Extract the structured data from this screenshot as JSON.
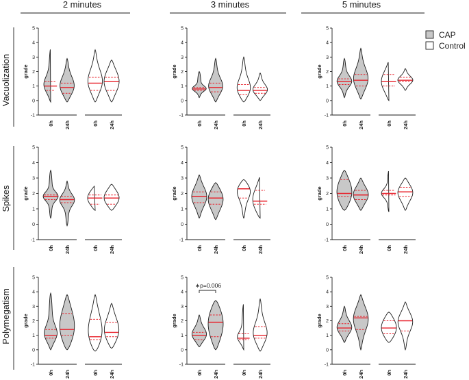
{
  "column_headers": [
    "2 minutes",
    "3 minutes",
    "5 minutes"
  ],
  "row_labels": [
    "Vacuolization",
    "Spikes",
    "Polymegatism"
  ],
  "legend": {
    "position": "top-right",
    "items": [
      {
        "label": "CAP",
        "color": "#c8c8c8"
      },
      {
        "label": "Control",
        "color": "#ffffff"
      }
    ]
  },
  "colors": {
    "median": "#e8202a",
    "quartile": "#e8202a",
    "outline": "#1a1a1a",
    "cap_fill": "#c8c8c8",
    "control_fill": "#ffffff"
  },
  "chart_data": [
    {
      "type": "violin",
      "row": "Vacuolization",
      "col": "2 minutes",
      "ylabel": "grade",
      "ylim": [
        -1,
        5
      ],
      "yticks": [
        -1,
        0,
        1,
        2,
        3,
        4,
        5
      ],
      "groups": [
        {
          "label": "0h",
          "group": "CAP",
          "min": -0.1,
          "max": 3.6,
          "median": 1.0,
          "q1": 0.7,
          "q3": 1.3
        },
        {
          "label": "24h",
          "group": "CAP",
          "min": -0.1,
          "max": 2.9,
          "median": 0.9,
          "q1": 0.5,
          "q3": 1.2
        },
        {
          "label": "0h",
          "group": "Control",
          "min": -0.1,
          "max": 3.5,
          "median": 1.2,
          "q1": 0.7,
          "q3": 1.6
        },
        {
          "label": "24h",
          "group": "Control",
          "min": -0.1,
          "max": 2.8,
          "median": 1.3,
          "q1": 0.7,
          "q3": 1.6
        }
      ]
    },
    {
      "type": "violin",
      "row": "Vacuolization",
      "col": "3 minutes",
      "ylabel": "grade",
      "ylim": [
        -1,
        5
      ],
      "yticks": [
        -1,
        0,
        1,
        2,
        3,
        4,
        5
      ],
      "groups": [
        {
          "label": "0h",
          "group": "CAP",
          "min": 0.2,
          "max": 2.0,
          "median": 0.8,
          "q1": 0.7,
          "q3": 0.9
        },
        {
          "label": "24h",
          "group": "CAP",
          "min": -0.1,
          "max": 2.9,
          "median": 0.9,
          "q1": 0.6,
          "q3": 1.2
        },
        {
          "label": "0h",
          "group": "Control",
          "min": -0.1,
          "max": 3.0,
          "median": 0.7,
          "q1": 0.4,
          "q3": 1.1
        },
        {
          "label": "24h",
          "group": "Control",
          "min": 0.0,
          "max": 1.9,
          "median": 0.7,
          "q1": 0.5,
          "q3": 0.9
        }
      ]
    },
    {
      "type": "violin",
      "row": "Vacuolization",
      "col": "5 minutes",
      "ylabel": "grade",
      "ylim": [
        -1,
        5
      ],
      "yticks": [
        -1,
        0,
        1,
        2,
        3,
        4,
        5
      ],
      "groups": [
        {
          "label": "0h",
          "group": "CAP",
          "min": 0.2,
          "max": 2.9,
          "median": 1.3,
          "q1": 1.1,
          "q3": 1.5
        },
        {
          "label": "24h",
          "group": "CAP",
          "min": 0.1,
          "max": 3.6,
          "median": 1.4,
          "q1": 1.0,
          "q3": 1.8
        },
        {
          "label": "0h",
          "group": "Control",
          "min": 0.0,
          "max": 2.7,
          "median": 1.3,
          "q1": 1.0,
          "q3": 1.8
        },
        {
          "label": "24h",
          "group": "Control",
          "min": 0.7,
          "max": 2.2,
          "median": 1.4,
          "q1": 1.3,
          "q3": 1.6
        }
      ]
    },
    {
      "type": "violin",
      "row": "Spikes",
      "col": "2 minutes",
      "ylabel": "grade",
      "ylim": [
        -1,
        5
      ],
      "yticks": [
        -1,
        0,
        1,
        2,
        3,
        4,
        5
      ],
      "groups": [
        {
          "label": "0h",
          "group": "CAP",
          "min": 0.4,
          "max": 3.5,
          "median": 1.8,
          "q1": 1.6,
          "q3": 1.9
        },
        {
          "label": "24h",
          "group": "CAP",
          "min": -0.1,
          "max": 2.8,
          "median": 1.6,
          "q1": 1.4,
          "q3": 1.8
        },
        {
          "label": "0h",
          "group": "Control",
          "min": 0.9,
          "max": 2.5,
          "median": 1.7,
          "q1": 1.3,
          "q3": 1.9
        },
        {
          "label": "24h",
          "group": "Control",
          "min": 0.9,
          "max": 2.6,
          "median": 1.7,
          "q1": 1.3,
          "q3": 1.9
        }
      ]
    },
    {
      "type": "violin",
      "row": "Spikes",
      "col": "3 minutes",
      "ylabel": "grade",
      "ylim": [
        -1,
        5
      ],
      "yticks": [
        -1,
        0,
        1,
        2,
        3,
        4,
        5
      ],
      "groups": [
        {
          "label": "0h",
          "group": "CAP",
          "min": 0.4,
          "max": 3.2,
          "median": 1.8,
          "q1": 1.4,
          "q3": 2.1
        },
        {
          "label": "24h",
          "group": "CAP",
          "min": 0.3,
          "max": 2.7,
          "median": 1.7,
          "q1": 1.3,
          "q3": 2.1
        },
        {
          "label": "0h",
          "group": "Control",
          "min": 0.4,
          "max": 2.9,
          "median": 2.3,
          "q1": 1.7,
          "q3": 2.3
        },
        {
          "label": "24h",
          "group": "Control",
          "min": 0.4,
          "max": 3.1,
          "median": 1.5,
          "q1": 1.3,
          "q3": 2.2
        }
      ]
    },
    {
      "type": "violin",
      "row": "Spikes",
      "col": "5 minutes",
      "ylabel": "grade",
      "ylim": [
        -1,
        5
      ],
      "yticks": [
        -1,
        0,
        1,
        2,
        3,
        4,
        5
      ],
      "groups": [
        {
          "label": "0h",
          "group": "CAP",
          "min": 0.9,
          "max": 3.5,
          "median": 2.0,
          "q1": 1.8,
          "q3": 2.9
        },
        {
          "label": "24h",
          "group": "CAP",
          "min": 0.9,
          "max": 3.0,
          "median": 1.9,
          "q1": 1.6,
          "q3": 2.2
        },
        {
          "label": "0h",
          "group": "Control",
          "min": 0.8,
          "max": 3.5,
          "median": 2.0,
          "q1": 1.9,
          "q3": 2.2
        },
        {
          "label": "24h",
          "group": "Control",
          "min": 0.9,
          "max": 3.0,
          "median": 2.1,
          "q1": 1.8,
          "q3": 2.4
        }
      ]
    },
    {
      "type": "violin",
      "row": "Polymegatism",
      "col": "2 minutes",
      "ylabel": "grade",
      "ylim": [
        -1,
        5
      ],
      "yticks": [
        -1,
        0,
        1,
        2,
        3,
        4,
        5
      ],
      "groups": [
        {
          "label": "0h",
          "group": "CAP",
          "min": 0.0,
          "max": 3.9,
          "median": 1.0,
          "q1": 0.8,
          "q3": 1.4
        },
        {
          "label": "24h",
          "group": "CAP",
          "min": 0.0,
          "max": 3.8,
          "median": 1.4,
          "q1": 1.0,
          "q3": 2.5
        },
        {
          "label": "0h",
          "group": "Control",
          "min": -0.1,
          "max": 3.8,
          "median": 0.9,
          "q1": 0.7,
          "q3": 2.1
        },
        {
          "label": "24h",
          "group": "Control",
          "min": 0.1,
          "max": 3.2,
          "median": 1.2,
          "q1": 0.9,
          "q3": 1.9
        }
      ]
    },
    {
      "type": "violin",
      "row": "Polymegatism",
      "col": "3 minutes",
      "ylabel": "grade",
      "ylim": [
        -1,
        5
      ],
      "yticks": [
        -1,
        0,
        1,
        2,
        3,
        4,
        5
      ],
      "annotation": {
        "text": "∗p=0.006",
        "between": [
          "0h",
          "24h"
        ],
        "group": "CAP"
      },
      "groups": [
        {
          "label": "0h",
          "group": "CAP",
          "min": 0.2,
          "max": 2.4,
          "median": 1.0,
          "q1": 0.7,
          "q3": 1.2
        },
        {
          "label": "24h",
          "group": "CAP",
          "min": 0.0,
          "max": 3.4,
          "median": 1.9,
          "q1": 0.9,
          "q3": 2.4
        },
        {
          "label": "0h",
          "group": "Control",
          "min": 0.0,
          "max": 3.2,
          "median": 0.8,
          "q1": 0.7,
          "q3": 1.1
        },
        {
          "label": "24h",
          "group": "Control",
          "min": -0.1,
          "max": 3.5,
          "median": 1.0,
          "q1": 0.8,
          "q3": 1.6
        }
      ]
    },
    {
      "type": "violin",
      "row": "Polymegatism",
      "col": "5 minutes",
      "ylabel": "grade",
      "ylim": [
        -1,
        5
      ],
      "yticks": [
        -1,
        0,
        1,
        2,
        3,
        4,
        5
      ],
      "groups": [
        {
          "label": "0h",
          "group": "CAP",
          "min": 0.5,
          "max": 3.0,
          "median": 1.5,
          "q1": 1.3,
          "q3": 1.8
        },
        {
          "label": "24h",
          "group": "CAP",
          "min": 0.0,
          "max": 3.8,
          "median": 2.2,
          "q1": 1.4,
          "q3": 2.3
        },
        {
          "label": "0h",
          "group": "Control",
          "min": 0.5,
          "max": 2.6,
          "median": 1.5,
          "q1": 1.1,
          "q3": 2.0
        },
        {
          "label": "24h",
          "group": "Control",
          "min": 0.0,
          "max": 3.3,
          "median": 2.0,
          "q1": 1.3,
          "q3": 2.0
        }
      ]
    }
  ]
}
